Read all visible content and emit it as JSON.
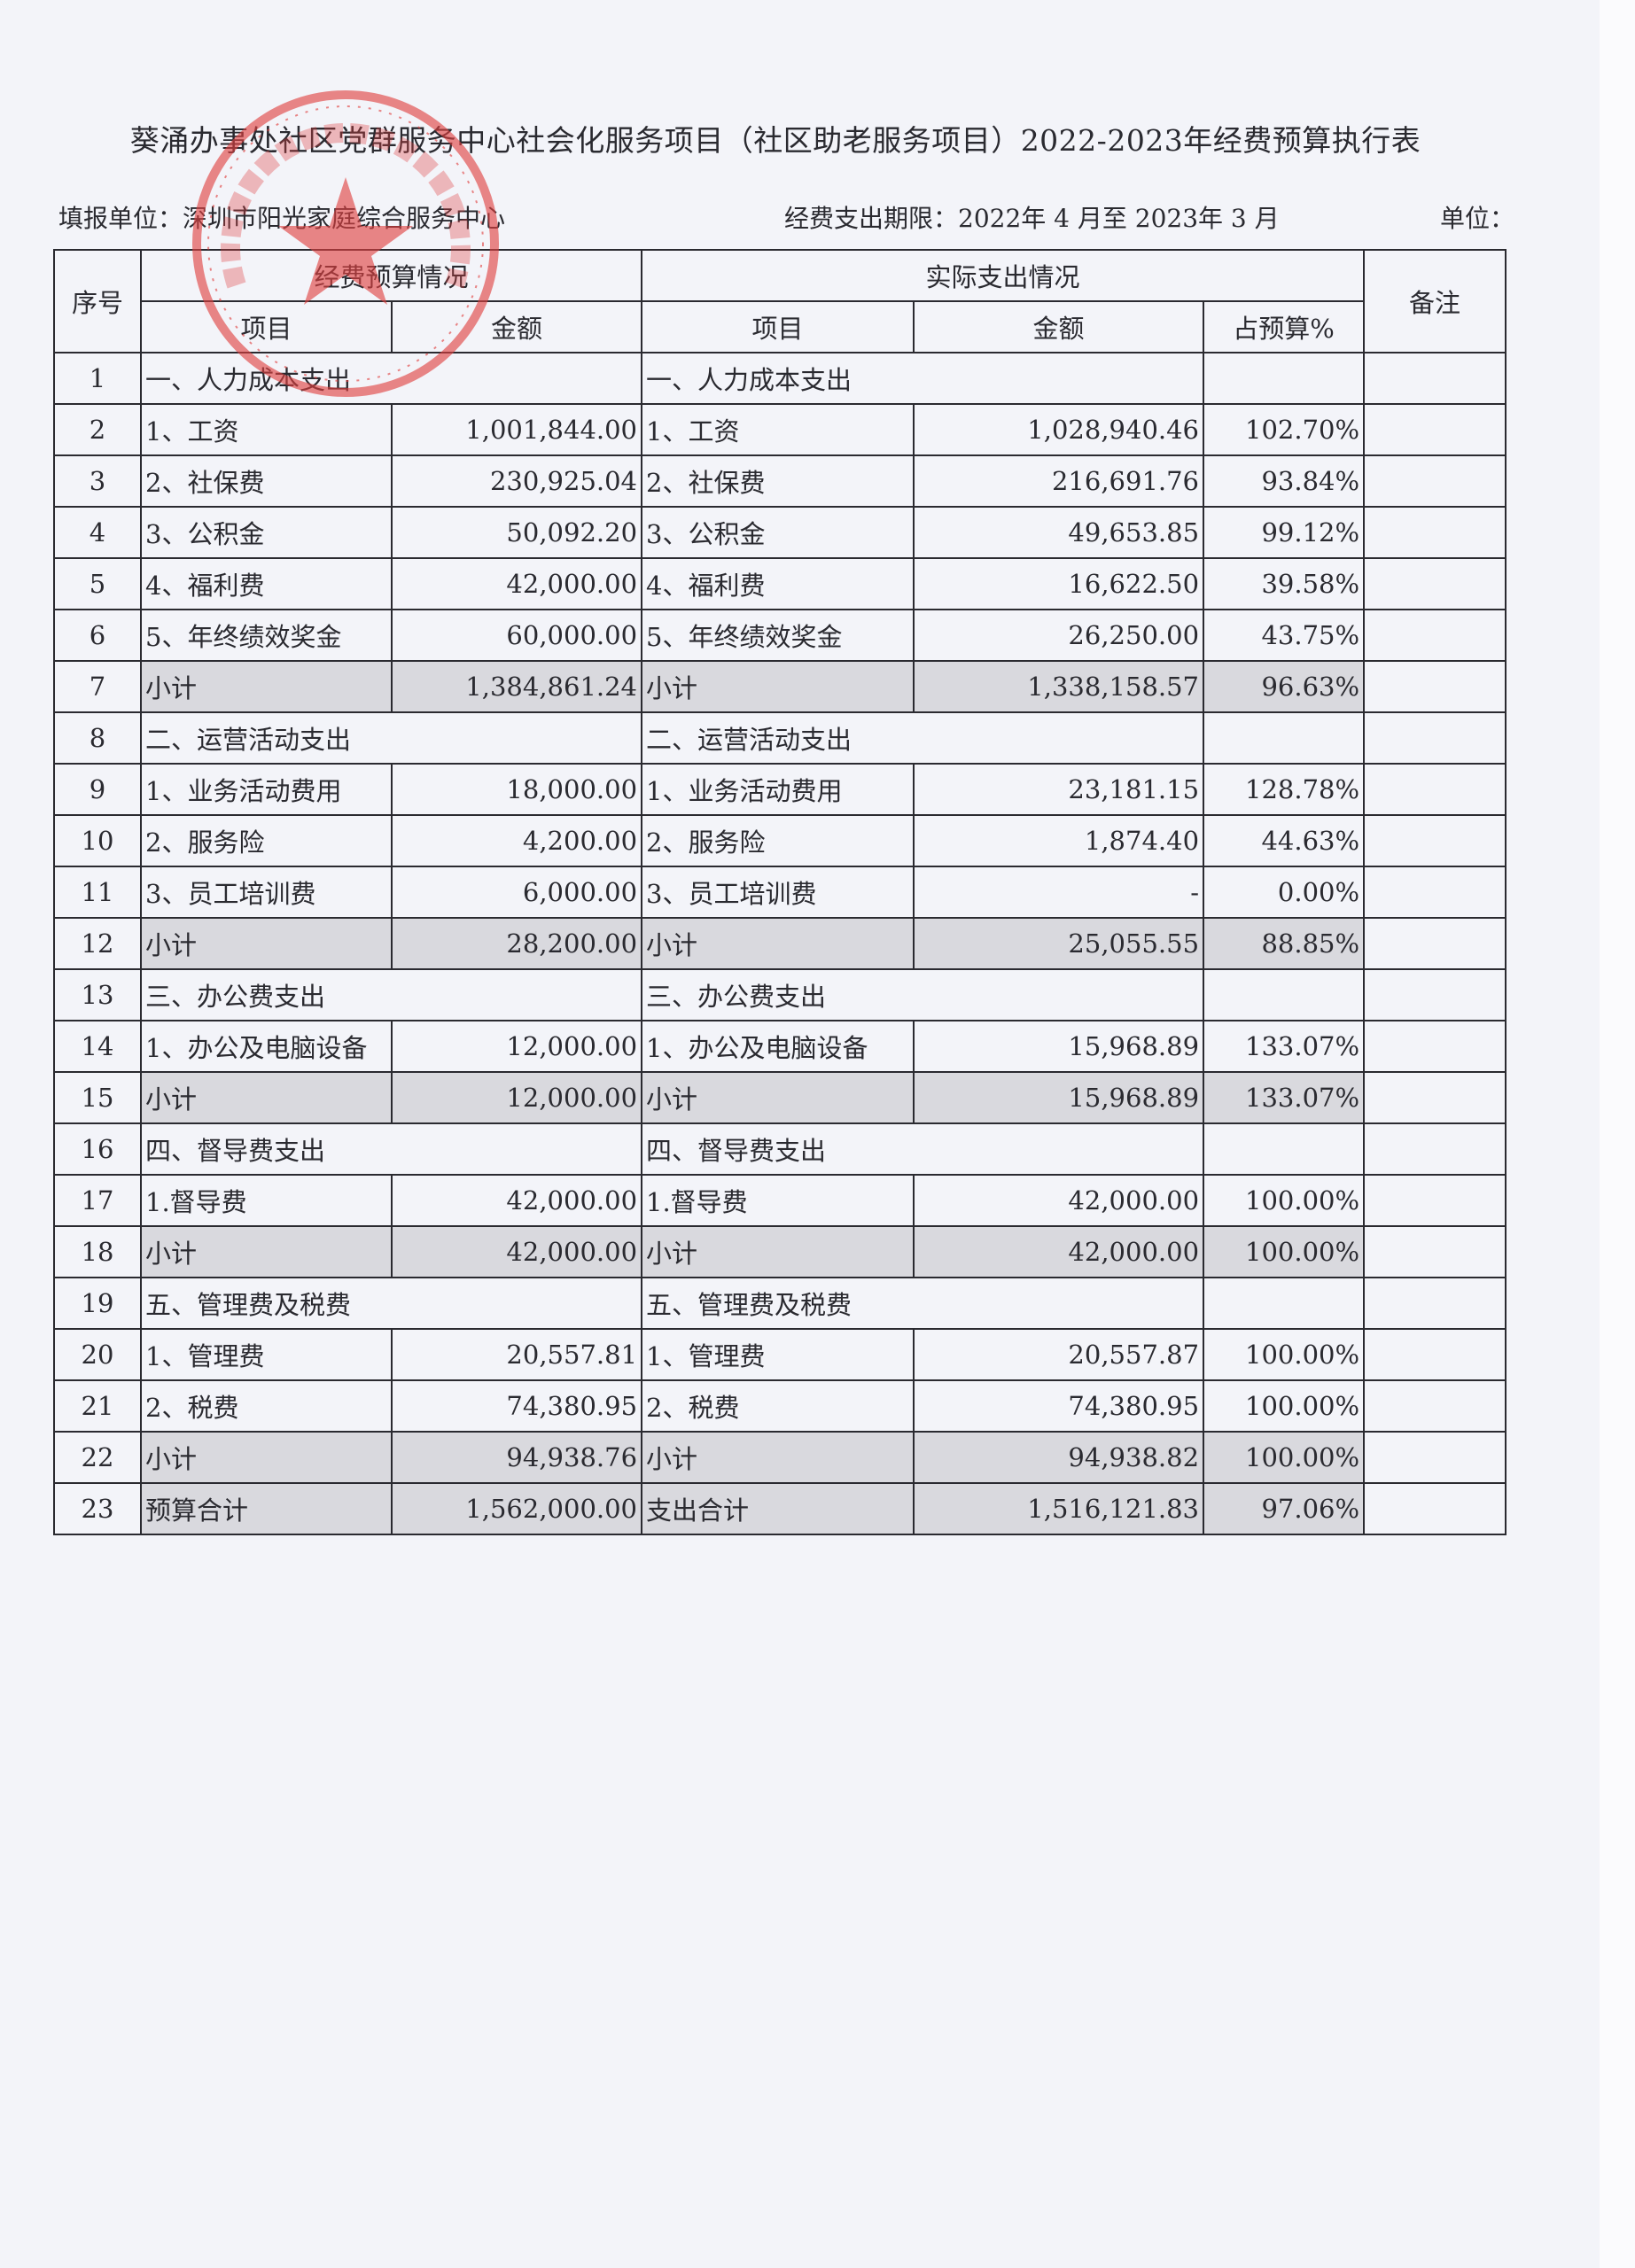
{
  "title": "葵涌办事处社区党群服务中心社会化服务项目（社区助老服务项目）2022-2023年经费预算执行表",
  "fill_unit": "填报单位：深圳市阳光家庭综合服务中心",
  "period": "经费支出期限：2022年 4 月至 2023年 3 月",
  "unit_label": "单位：",
  "stamp": {
    "text": "深圳市阳光家庭综合服务中心",
    "color": "#e0403f"
  },
  "header": {
    "seq": "序号",
    "budget_group": "经费预算情况",
    "actual_group": "实际支出情况",
    "remark": "备注",
    "budget_item": "项目",
    "budget_amount": "金额",
    "actual_item": "项目",
    "actual_amount": "金额",
    "percent": "占预算%"
  },
  "rows": [
    {
      "seq": "1",
      "type": "section",
      "budget_item": "一、人力成本支出",
      "actual_item": "一、人力成本支出"
    },
    {
      "seq": "2",
      "type": "item",
      "budget_item": "1、工资",
      "budget_amount": "1,001,844.00",
      "actual_item": "1、工资",
      "actual_amount": "1,028,940.46",
      "percent": "102.70%"
    },
    {
      "seq": "3",
      "type": "item",
      "budget_item": "2、社保费",
      "budget_amount": "230,925.04",
      "actual_item": "2、社保费",
      "actual_amount": "216,691.76",
      "percent": "93.84%"
    },
    {
      "seq": "4",
      "type": "item",
      "budget_item": "3、公积金",
      "budget_amount": "50,092.20",
      "actual_item": "3、公积金",
      "actual_amount": "49,653.85",
      "percent": "99.12%"
    },
    {
      "seq": "5",
      "type": "item",
      "budget_item": "4、福利费",
      "budget_amount": "42,000.00",
      "actual_item": "4、福利费",
      "actual_amount": "16,622.50",
      "percent": "39.58%"
    },
    {
      "seq": "6",
      "type": "item",
      "budget_item": "5、年终绩效奖金",
      "budget_amount": "60,000.00",
      "actual_item": "5、年终绩效奖金",
      "actual_amount": "26,250.00",
      "percent": "43.75%"
    },
    {
      "seq": "7",
      "type": "subtotal",
      "budget_item": "小计",
      "budget_amount": "1,384,861.24",
      "actual_item": "小计",
      "actual_amount": "1,338,158.57",
      "percent": "96.63%"
    },
    {
      "seq": "8",
      "type": "section",
      "budget_item": "二、运营活动支出",
      "actual_item": "二、运营活动支出"
    },
    {
      "seq": "9",
      "type": "item",
      "budget_item": "1、业务活动费用",
      "budget_amount": "18,000.00",
      "actual_item": "1、业务活动费用",
      "actual_amount": "23,181.15",
      "percent": "128.78%"
    },
    {
      "seq": "10",
      "type": "item",
      "budget_item": "2、服务险",
      "budget_amount": "4,200.00",
      "actual_item": "2、服务险",
      "actual_amount": "1,874.40",
      "percent": "44.63%"
    },
    {
      "seq": "11",
      "type": "item",
      "budget_item": "3、员工培训费",
      "budget_amount": "6,000.00",
      "actual_item": "3、员工培训费",
      "actual_amount": "-",
      "percent": "0.00%"
    },
    {
      "seq": "12",
      "type": "subtotal",
      "budget_item": "小计",
      "budget_amount": "28,200.00",
      "actual_item": "小计",
      "actual_amount": "25,055.55",
      "percent": "88.85%"
    },
    {
      "seq": "13",
      "type": "section",
      "budget_item": "三、办公费支出",
      "actual_item": "三、办公费支出"
    },
    {
      "seq": "14",
      "type": "item",
      "budget_item": "1、办公及电脑设备",
      "budget_amount": "12,000.00",
      "actual_item": "1、办公及电脑设备",
      "actual_amount": "15,968.89",
      "percent": "133.07%"
    },
    {
      "seq": "15",
      "type": "subtotal",
      "budget_item": "小计",
      "budget_amount": "12,000.00",
      "actual_item": "小计",
      "actual_amount": "15,968.89",
      "percent": "133.07%"
    },
    {
      "seq": "16",
      "type": "section",
      "budget_item": "四、督导费支出",
      "actual_item": "四、督导费支出"
    },
    {
      "seq": "17",
      "type": "item",
      "budget_item": "1.督导费",
      "budget_amount": "42,000.00",
      "actual_item": "1.督导费",
      "actual_amount": "42,000.00",
      "percent": "100.00%"
    },
    {
      "seq": "18",
      "type": "subtotal",
      "budget_item": "小计",
      "budget_amount": "42,000.00",
      "actual_item": "小计",
      "actual_amount": "42,000.00",
      "percent": "100.00%"
    },
    {
      "seq": "19",
      "type": "section",
      "budget_item": "五、管理费及税费",
      "actual_item": "五、管理费及税费"
    },
    {
      "seq": "20",
      "type": "item",
      "budget_item": "1、管理费",
      "budget_amount": "20,557.81",
      "actual_item": "1、管理费",
      "actual_amount": "20,557.87",
      "percent": "100.00%"
    },
    {
      "seq": "21",
      "type": "item",
      "budget_item": "2、税费",
      "budget_amount": "74,380.95",
      "actual_item": "2、税费",
      "actual_amount": "74,380.95",
      "percent": "100.00%"
    },
    {
      "seq": "22",
      "type": "subtotal",
      "budget_item": "小计",
      "budget_amount": "94,938.76",
      "actual_item": "小计",
      "actual_amount": "94,938.82",
      "percent": "100.00%"
    },
    {
      "seq": "23",
      "type": "subtotal",
      "budget_item": "预算合计",
      "budget_amount": "1,562,000.00",
      "actual_item": "支出合计",
      "actual_amount": "1,516,121.83",
      "percent": "97.06%"
    }
  ]
}
